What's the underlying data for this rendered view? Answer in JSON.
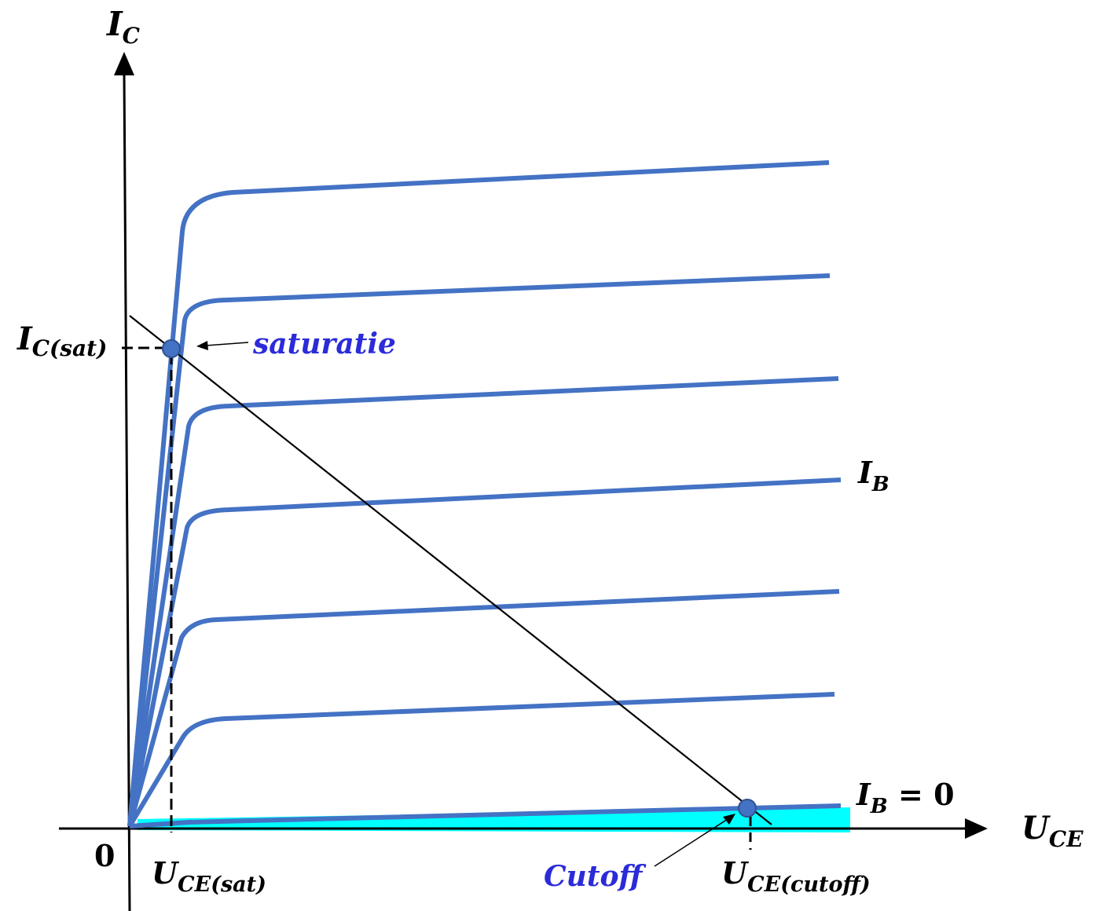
{
  "labels": {
    "y_axis_main": "I",
    "y_axis_sub": "C",
    "x_axis_main": "U",
    "x_axis_sub": "CE",
    "origin": "0",
    "ic_sat_main": "I",
    "ic_sat_sub": "C(sat)",
    "saturatie": "saturatie",
    "ib_main": "I",
    "ib_sub": "B",
    "ib0_main": "I",
    "ib0_sub": "B",
    "ib0_eq": " = 0",
    "uce_sat_main": "U",
    "uce_sat_sub": "CE(sat)",
    "cutoff": "Cutoff",
    "uce_cutoff_main": "U",
    "uce_cutoff_sub": "CE(cutoff)"
  },
  "colors": {
    "curve": "#4472c4",
    "highlight": "#00ffff",
    "annotation": "#2b2bd9",
    "axis": "#000000"
  }
}
